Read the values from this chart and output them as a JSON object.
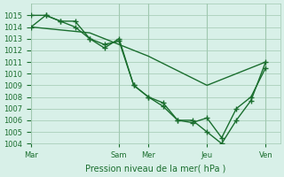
{
  "title": "",
  "xlabel": "Pression niveau de la mer( hPa )",
  "ylabel": "",
  "bg_color": "#d8f0e8",
  "grid_color": "#a0c8b0",
  "line_color": "#1a6e2e",
  "ylim": [
    1004,
    1016
  ],
  "yticks": [
    1004,
    1005,
    1006,
    1007,
    1008,
    1009,
    1010,
    1011,
    1012,
    1013,
    1014,
    1015
  ],
  "xtick_labels": [
    "Mar",
    "Sam",
    "Mer",
    "Jeu",
    "Ven"
  ],
  "xtick_positions": [
    0,
    3,
    4,
    6,
    8
  ],
  "series1_x": [
    0,
    0.5,
    1,
    1.5,
    2,
    2.5,
    3,
    3.5,
    4,
    4.5,
    5,
    5.5,
    6,
    6.5,
    7,
    7.5,
    8
  ],
  "series1_y": [
    1014,
    1015,
    1014.5,
    1014,
    1013,
    1012.5,
    1012.8,
    1009,
    1008,
    1007.5,
    1006,
    1006,
    1005,
    1004,
    1006,
    1007.7,
    1011
  ],
  "series2_x": [
    0,
    0.5,
    1,
    1.5,
    2,
    2.5,
    3,
    3.5,
    4,
    4.5,
    5,
    5.5,
    6,
    6.5,
    7,
    7.5,
    8
  ],
  "series2_y": [
    1015,
    1015,
    1014.5,
    1014.5,
    1013,
    1012.2,
    1013,
    1009,
    1008,
    1007.2,
    1006,
    1005.8,
    1006.2,
    1004.5,
    1007,
    1008,
    1010.5
  ],
  "series3_x": [
    0,
    2,
    4,
    6,
    8
  ],
  "series3_y": [
    1014,
    1013.5,
    1011.5,
    1009,
    1011
  ]
}
